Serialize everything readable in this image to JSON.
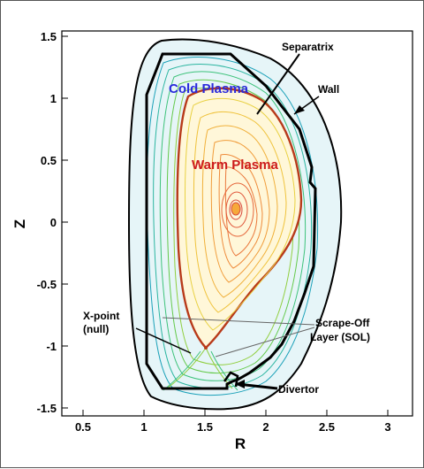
{
  "axes": {
    "x_label": "R",
    "y_label": "Z",
    "x_ticks": [
      "0.5",
      "1",
      "1.5",
      "2",
      "2.5",
      "3"
    ],
    "y_ticks": [
      "1.5",
      "1",
      "0.5",
      "0",
      "-0.5",
      "-1",
      "-1.5"
    ]
  },
  "labels": {
    "separatrix": "Separatrix",
    "wall": "Wall",
    "cold_plasma": "Cold Plasma",
    "warm_plasma": "Warm Plasma",
    "x_point_line1": "X-point",
    "x_point_line2": "(null)",
    "sol_line1": "Scrape-Off",
    "sol_line2": "Layer (SOL)",
    "divertor": "Divertor"
  },
  "colors": {
    "cold_plasma": "#2a2adb",
    "warm_plasma": "#cc1a1a",
    "separatrix": "#b83a1a",
    "wall": "#000000"
  }
}
